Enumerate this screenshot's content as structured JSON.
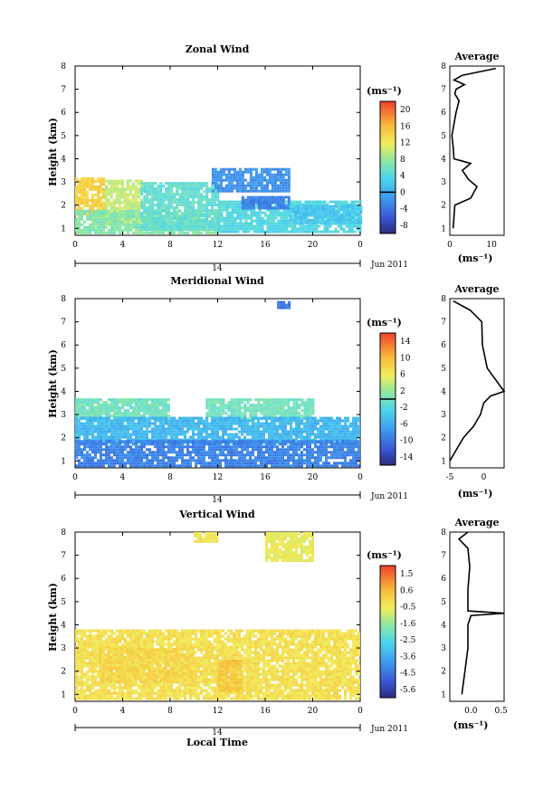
{
  "figure": {
    "xlabel": "Local Time",
    "date_label": "Jun 2011",
    "day_label": "14"
  },
  "chart_data": [
    {
      "type": "heatmap",
      "title": "Zonal Wind",
      "xlabel": "Local Time",
      "ylabel": "Height (km)",
      "x_ticks": [
        "0",
        "4",
        "8",
        "12",
        "16",
        "20",
        "0"
      ],
      "xlim": [
        0,
        24
      ],
      "ylim": [
        0.7,
        8
      ],
      "y_ticks": [
        "1",
        "2",
        "3",
        "4",
        "5",
        "6",
        "7",
        "8"
      ],
      "colorbar": {
        "unit": "(ms⁻¹)",
        "ticks": [
          "20",
          "16",
          "12",
          "8",
          "4",
          "0",
          "-4",
          "-8"
        ],
        "range": [
          -10,
          22
        ],
        "zero_contour": 0
      },
      "regions": [
        {
          "t0": 0,
          "t1": 2.5,
          "h0": 1.6,
          "h1": 3.2,
          "value": 14
        },
        {
          "t0": 2.5,
          "t1": 5.5,
          "h0": 1.2,
          "h1": 3.1,
          "value": 10
        },
        {
          "t0": 0,
          "t1": 12,
          "h0": 0.8,
          "h1": 1.8,
          "value": 7
        },
        {
          "t0": 5.5,
          "t1": 12,
          "h0": 1.0,
          "h1": 3.0,
          "value": 5
        },
        {
          "t0": 12,
          "t1": 24,
          "h0": 0.8,
          "h1": 2.2,
          "value": 4
        },
        {
          "t0": 11.5,
          "t1": 18,
          "h0": 2.6,
          "h1": 3.6,
          "value": -2
        },
        {
          "t0": 14,
          "t1": 18,
          "h0": 1.9,
          "h1": 2.4,
          "value": -3
        },
        {
          "t0": 18,
          "t1": 24,
          "h0": 1.2,
          "h1": 2.0,
          "value": 2
        }
      ],
      "average_profile": {
        "title": "Average",
        "unit": "(ms⁻¹)",
        "xlim": [
          0,
          13
        ],
        "x_ticks": [
          "0",
          "10"
        ],
        "points": [
          [
            0.8,
            1.0
          ],
          [
            1.2,
            2.0
          ],
          [
            5.0,
            2.3
          ],
          [
            6.5,
            2.8
          ],
          [
            4.5,
            3.1
          ],
          [
            3.0,
            3.5
          ],
          [
            5.0,
            3.8
          ],
          [
            1.0,
            4.0
          ],
          [
            0.8,
            4.5
          ],
          [
            0.5,
            5.0
          ],
          [
            1.0,
            5.5
          ],
          [
            1.5,
            6.0
          ],
          [
            2.2,
            6.5
          ],
          [
            1.2,
            6.8
          ],
          [
            1.5,
            7.0
          ],
          [
            3.5,
            7.2
          ],
          [
            1.0,
            7.4
          ],
          [
            3.0,
            7.6
          ],
          [
            11.0,
            7.9
          ]
        ]
      }
    },
    {
      "type": "heatmap",
      "title": "Meridional Wind",
      "xlabel": "Local Time",
      "ylabel": "Height (km)",
      "x_ticks": [
        "0",
        "4",
        "8",
        "12",
        "16",
        "20",
        "0"
      ],
      "xlim": [
        0,
        24
      ],
      "ylim": [
        0.7,
        8
      ],
      "y_ticks": [
        "1",
        "2",
        "3",
        "4",
        "5",
        "6",
        "7",
        "8"
      ],
      "colorbar": {
        "unit": "(ms⁻¹)",
        "ticks": [
          "14",
          "10",
          "6",
          "2",
          "-2",
          "-6",
          "-10",
          "-14"
        ],
        "range": [
          -16,
          16
        ],
        "zero_contour": 0
      },
      "regions": [
        {
          "t0": 0,
          "t1": 8,
          "h0": 2.8,
          "h1": 3.7,
          "value": 0
        },
        {
          "t0": 11,
          "t1": 20,
          "h0": 2.8,
          "h1": 3.7,
          "value": 0
        },
        {
          "t0": 0,
          "t1": 24,
          "h0": 1.8,
          "h1": 2.9,
          "value": -5
        },
        {
          "t0": 0,
          "t1": 24,
          "h0": 0.8,
          "h1": 1.9,
          "value": -9
        },
        {
          "t0": 17,
          "t1": 18,
          "h0": 7.6,
          "h1": 7.9,
          "value": -10
        }
      ],
      "average_profile": {
        "title": "Average",
        "unit": "(ms⁻¹)",
        "xlim": [
          -5,
          3
        ],
        "x_ticks": [
          "-5",
          "0"
        ],
        "points": [
          [
            -5.0,
            1.0
          ],
          [
            -4.0,
            1.5
          ],
          [
            -3.0,
            2.0
          ],
          [
            -1.5,
            2.5
          ],
          [
            -0.5,
            3.0
          ],
          [
            0.0,
            3.5
          ],
          [
            1.0,
            3.8
          ],
          [
            3.0,
            4.0
          ],
          [
            0.5,
            5.0
          ],
          [
            -0.2,
            6.0
          ],
          [
            -0.3,
            7.0
          ],
          [
            -2.0,
            7.5
          ],
          [
            -4.5,
            7.9
          ]
        ]
      }
    },
    {
      "type": "heatmap",
      "title": "Vertical Wind",
      "xlabel": "Local Time",
      "ylabel": "Height (km)",
      "x_ticks": [
        "0",
        "4",
        "8",
        "12",
        "16",
        "20",
        "0"
      ],
      "xlim": [
        0,
        24
      ],
      "ylim": [
        0.7,
        8
      ],
      "y_ticks": [
        "1",
        "2",
        "3",
        "4",
        "5",
        "6",
        "7",
        "8"
      ],
      "colorbar": {
        "unit": "(ms⁻¹)",
        "ticks": [
          "1.5",
          "0.6",
          "-0.5",
          "-1.6",
          "-2.5",
          "-3.6",
          "-4.5",
          "-5.6"
        ],
        "range": [
          -6,
          2
        ],
        "zero_contour": null
      },
      "regions": [
        {
          "t0": 0,
          "t1": 24,
          "h0": 0.8,
          "h1": 3.8,
          "value": -0.3
        },
        {
          "t0": 2,
          "t1": 10,
          "h0": 1.5,
          "h1": 3.0,
          "value": -0.1
        },
        {
          "t0": 12,
          "t1": 14,
          "h0": 1.2,
          "h1": 2.5,
          "value": 0.2
        },
        {
          "t0": 16,
          "t1": 20,
          "h0": 6.8,
          "h1": 8.0,
          "value": -0.6
        },
        {
          "t0": 10,
          "t1": 12,
          "h0": 7.6,
          "h1": 8.0,
          "value": -0.4
        }
      ],
      "average_profile": {
        "title": "Average",
        "unit": "(ms⁻¹)",
        "xlim": [
          -0.35,
          0.55
        ],
        "x_ticks": [
          "0.0",
          "0.5"
        ],
        "points": [
          [
            -0.15,
            1.0
          ],
          [
            -0.1,
            2.0
          ],
          [
            -0.05,
            3.0
          ],
          [
            -0.05,
            4.0
          ],
          [
            0.0,
            4.4
          ],
          [
            0.55,
            4.5
          ],
          [
            -0.05,
            4.6
          ],
          [
            -0.05,
            5.5
          ],
          [
            -0.02,
            6.5
          ],
          [
            -0.05,
            7.3
          ],
          [
            -0.2,
            7.7
          ],
          [
            -0.05,
            8.0
          ]
        ]
      }
    }
  ]
}
